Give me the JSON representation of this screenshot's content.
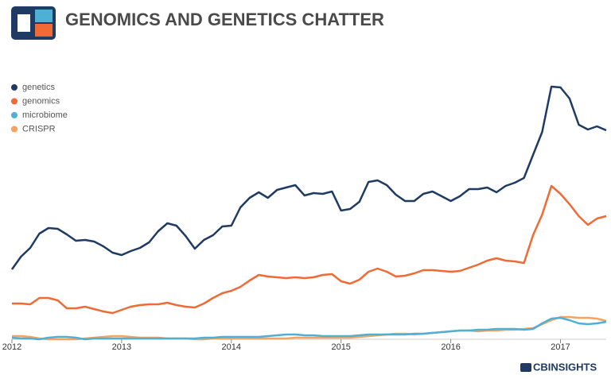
{
  "chart_data": {
    "type": "line",
    "title": "GENOMICS AND GENETICS CHATTER",
    "brand": "CBINSIGHTS",
    "x": [
      2012,
      2012.083,
      2012.167,
      2012.25,
      2012.333,
      2012.417,
      2012.5,
      2012.583,
      2012.667,
      2012.75,
      2012.833,
      2012.917,
      2013,
      2013.083,
      2013.167,
      2013.25,
      2013.333,
      2013.417,
      2013.5,
      2013.583,
      2013.667,
      2013.75,
      2013.833,
      2013.917,
      2014,
      2014.083,
      2014.167,
      2014.25,
      2014.333,
      2014.417,
      2014.5,
      2014.583,
      2014.667,
      2014.75,
      2014.833,
      2014.917,
      2015,
      2015.083,
      2015.167,
      2015.25,
      2015.333,
      2015.417,
      2015.5,
      2015.583,
      2015.667,
      2015.75,
      2015.833,
      2015.917,
      2016,
      2016.083,
      2016.167,
      2016.25,
      2016.333,
      2016.417,
      2016.5,
      2016.583,
      2016.667,
      2016.75,
      2016.833,
      2016.917,
      2017,
      2017.083,
      2017.167,
      2017.25,
      2017.333,
      2017.417
    ],
    "xlim": [
      2012,
      2017.417
    ],
    "xticks": [
      2012,
      2013,
      2014,
      2015,
      2016,
      2017
    ],
    "ylim": [
      0,
      330
    ],
    "legend": "top-left",
    "series": [
      {
        "name": "genetics",
        "color": "#1f3b63",
        "values": [
          88,
          104,
          115,
          133,
          140,
          139,
          132,
          124,
          125,
          123,
          117,
          109,
          106,
          111,
          115,
          122,
          136,
          146,
          143,
          130,
          114,
          125,
          131,
          142,
          143,
          166,
          178,
          185,
          178,
          188,
          191,
          194,
          181,
          184,
          183,
          186,
          162,
          164,
          173,
          198,
          200,
          194,
          182,
          174,
          174,
          183,
          186,
          180,
          174,
          180,
          189,
          189,
          191,
          185,
          193,
          197,
          203,
          232,
          261,
          318,
          317,
          303,
          270,
          264,
          268,
          263
        ]
      },
      {
        "name": "genomics",
        "color": "#f06a35",
        "values": [
          45,
          45,
          44,
          52,
          52,
          49,
          39,
          39,
          41,
          38,
          35,
          33,
          37,
          41,
          43,
          44,
          44,
          46,
          43,
          41,
          40,
          45,
          52,
          58,
          61,
          66,
          74,
          81,
          79,
          78,
          77,
          78,
          77,
          78,
          81,
          82,
          73,
          70,
          75,
          85,
          89,
          85,
          79,
          80,
          83,
          87,
          87,
          86,
          85,
          86,
          90,
          94,
          99,
          102,
          99,
          98,
          96,
          131,
          157,
          193,
          183,
          170,
          155,
          144,
          152,
          155
        ]
      },
      {
        "name": "microbiome",
        "color": "#4fb0d6",
        "values": [
          2,
          1,
          1,
          0,
          2,
          3,
          3,
          2,
          0,
          1,
          1,
          1,
          1,
          1,
          1,
          1,
          1,
          1,
          1,
          1,
          1,
          2,
          2,
          3,
          3,
          3,
          3,
          3,
          4,
          5,
          6,
          6,
          5,
          5,
          4,
          4,
          4,
          4,
          5,
          6,
          6,
          6,
          6,
          6,
          7,
          7,
          8,
          9,
          10,
          11,
          11,
          12,
          12,
          13,
          13,
          13,
          12,
          13,
          20,
          26,
          27,
          24,
          20,
          19,
          20,
          22
        ]
      },
      {
        "name": "CRISPR",
        "color": "#f7a25e",
        "values": [
          4,
          4,
          3,
          1,
          0,
          0,
          0,
          0,
          1,
          2,
          3,
          4,
          4,
          3,
          2,
          2,
          2,
          1,
          1,
          1,
          0,
          0,
          1,
          1,
          1,
          1,
          1,
          1,
          1,
          1,
          1,
          2,
          2,
          2,
          2,
          2,
          2,
          2,
          3,
          4,
          5,
          6,
          7,
          7,
          6,
          7,
          8,
          9,
          10,
          11,
          11,
          10,
          11,
          11,
          12,
          12,
          13,
          14,
          19,
          24,
          28,
          28,
          27,
          27,
          26,
          23
        ]
      }
    ]
  }
}
